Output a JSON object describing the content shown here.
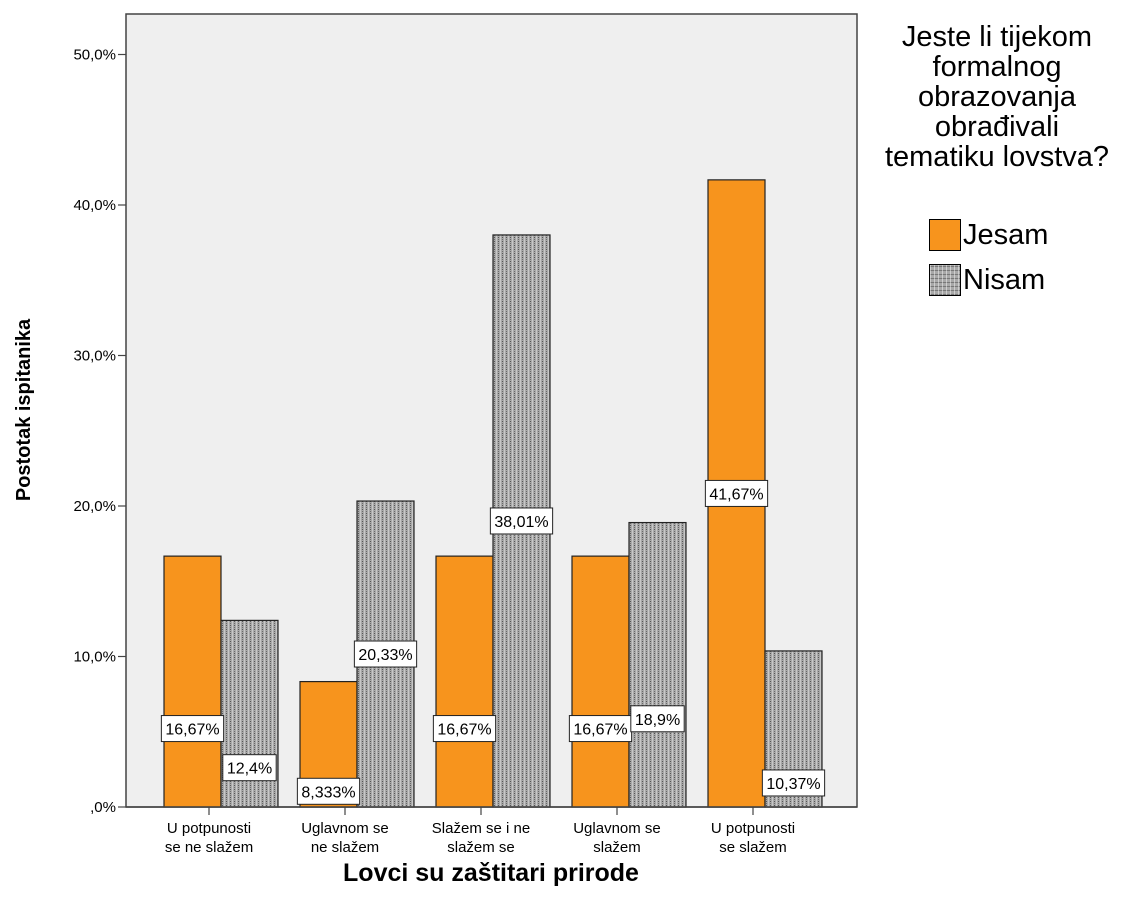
{
  "chart_data": {
    "type": "bar",
    "title": "",
    "xlabel": "Lovci su zaštitari prirode",
    "ylabel": "Postotak ispitanika",
    "ylim": [
      0,
      52
    ],
    "yticks": [
      0,
      10,
      20,
      30,
      40,
      50
    ],
    "ytick_labels": [
      ",0%",
      "10,0%",
      "20,0%",
      "30,0%",
      "40,0%",
      "50,0%"
    ],
    "categories": [
      [
        "U potpunosti",
        "se ne slažem"
      ],
      [
        "Uglavnom se",
        "ne slažem"
      ],
      [
        "Slažem se i ne",
        "slažem se"
      ],
      [
        "Uglavnom se",
        "slažem"
      ],
      [
        "U potpunosti",
        "se slažem"
      ]
    ],
    "series": [
      {
        "name": "Jesam",
        "color": "#f7941d",
        "pattern": "solid",
        "values": [
          16.67,
          8.333,
          16.67,
          16.67,
          41.67
        ],
        "labels": [
          "16,67%",
          "8,333%",
          "16,67%",
          "16,67%",
          "41,67%"
        ]
      },
      {
        "name": "Nisam",
        "color": "#a8a8a8",
        "pattern": "dotted",
        "values": [
          12.4,
          20.33,
          38.01,
          18.9,
          10.37
        ],
        "labels": [
          "12,4%",
          "20,33%",
          "38,01%",
          "18,9%",
          "10,37%"
        ]
      }
    ],
    "grid": false,
    "plot_background": "#efefef",
    "legend": {
      "title": "Jeste li tijekom formalnog obrazovanja obrađivali tematiku lovstva?",
      "title_lines": [
        "Jeste li tijekom",
        "formalnog",
        "obrazovanja",
        "obrađivali",
        "tematiku lovstva?"
      ],
      "position": "right"
    }
  }
}
